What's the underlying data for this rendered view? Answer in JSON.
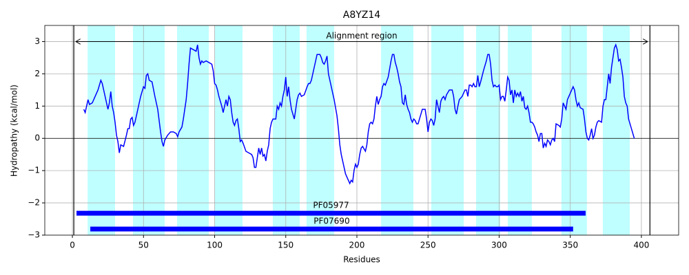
{
  "chart_data": {
    "type": "line",
    "title": "A8YZ14",
    "xlabel": "Residues",
    "ylabel": "Hydropathy (kcal/mol)",
    "color": "#0000ff",
    "xlim": [
      -19.4,
      426.2
    ],
    "ylim": [
      -3,
      3.5
    ],
    "xticks": [
      0,
      50,
      100,
      150,
      200,
      250,
      300,
      350,
      400
    ],
    "yticks": [
      {
        "value": -3,
        "label": "−3"
      },
      {
        "value": -2,
        "label": "−2"
      },
      {
        "value": -1,
        "label": "−1"
      },
      0,
      1,
      2,
      3
    ],
    "grid": true,
    "region_color": "#bfffff",
    "regions": [
      [
        10.7,
        30.0
      ],
      [
        42.6,
        64.9
      ],
      [
        73.6,
        95.9
      ],
      [
        100.2,
        119.6
      ],
      [
        140.9,
        159.8
      ],
      [
        164.6,
        184.0
      ],
      [
        217.0,
        239.7
      ],
      [
        252.3,
        275.1
      ],
      [
        283.8,
        300.7
      ],
      [
        306.1,
        323.0
      ],
      [
        343.8,
        361.7
      ],
      [
        372.9,
        391.8
      ]
    ],
    "vlines": [
      1,
      406
    ],
    "annotation": {
      "text": "Alignment region",
      "start": 2.4,
      "end": 404.4,
      "y": 3
    },
    "domains": [
      {
        "name": "PF05977",
        "start": 2.9,
        "end": 360.8,
        "y": -2.32,
        "color": "#0000ff"
      },
      {
        "name": "PF07690",
        "start": 12.6,
        "end": 352.0,
        "y": -2.81,
        "color": "#0000ff"
      }
    ],
    "x": [
      8,
      9,
      10,
      11,
      12,
      14,
      16,
      18,
      20,
      21,
      23,
      25,
      26,
      27,
      28,
      29,
      30,
      31,
      32,
      33,
      34,
      36,
      38,
      39,
      40,
      41,
      42,
      43,
      44,
      46,
      48,
      50,
      51,
      52,
      53,
      54,
      56,
      58,
      60,
      62,
      63,
      64,
      65,
      67,
      69,
      71,
      73,
      74,
      75,
      77,
      78,
      79,
      80,
      81,
      82,
      83,
      85,
      87,
      88,
      89,
      90,
      91,
      92,
      94,
      96,
      98,
      99,
      100,
      101,
      102,
      103,
      105,
      106,
      108,
      109,
      110,
      111,
      112,
      113,
      114,
      115,
      116,
      117,
      118,
      119,
      120,
      122,
      124,
      126,
      127,
      128,
      129,
      130,
      131,
      132,
      133,
      134,
      135,
      136,
      137,
      138,
      139,
      140,
      141,
      143,
      144,
      145,
      146,
      147,
      148,
      149,
      150,
      151,
      152,
      153,
      154,
      156,
      157,
      158,
      159,
      160,
      161,
      163,
      165,
      166,
      167,
      168,
      170,
      171,
      172,
      174,
      175,
      176,
      177,
      178,
      179,
      180,
      182,
      184,
      186,
      187,
      188,
      189,
      190,
      191,
      192,
      193,
      194,
      195,
      196,
      197,
      198,
      199,
      200,
      201,
      202,
      203,
      204,
      206,
      207,
      208,
      209,
      210,
      211,
      212,
      213,
      214,
      215,
      216,
      217,
      218,
      219,
      220,
      222,
      224,
      225,
      226,
      227,
      228,
      229,
      230,
      231,
      232,
      233,
      234,
      235,
      236,
      237,
      238,
      239,
      240,
      241,
      242,
      243,
      244,
      246,
      248,
      249,
      250,
      251,
      252,
      253,
      254,
      255,
      256,
      257,
      258,
      259,
      260,
      261,
      262,
      263,
      265,
      266,
      267,
      268,
      269,
      270,
      271,
      272,
      274,
      276,
      277,
      278,
      279,
      280,
      281,
      282,
      283,
      284,
      285,
      286,
      287,
      289,
      291,
      292,
      293,
      294,
      295,
      296,
      297,
      298,
      299,
      300,
      301,
      302,
      303,
      304,
      305,
      306,
      307,
      308,
      309,
      310,
      311,
      312,
      313,
      314,
      315,
      316,
      317,
      318,
      319,
      320,
      321,
      322,
      323,
      324,
      325,
      326,
      327,
      328,
      329,
      330,
      331,
      332,
      333,
      334,
      335,
      336,
      337,
      338,
      339,
      340,
      342,
      343,
      344,
      345,
      346,
      347,
      348,
      350,
      352,
      353,
      354,
      355,
      356,
      357,
      359,
      360,
      361,
      362,
      363,
      364,
      365,
      366,
      367,
      368,
      369,
      370,
      372,
      373,
      374,
      375,
      376,
      377,
      378,
      379,
      380,
      381,
      382,
      383,
      384,
      385,
      386,
      387,
      388,
      389,
      390,
      391,
      393,
      395
    ],
    "values": [
      0.9,
      0.8,
      1.0,
      1.2,
      1.05,
      1.1,
      1.3,
      1.5,
      1.8,
      1.7,
      1.3,
      0.9,
      1.1,
      1.45,
      1.0,
      0.8,
      0.5,
      0.1,
      -0.1,
      -0.45,
      -0.2,
      -0.25,
      0.1,
      0.3,
      0.3,
      0.6,
      0.65,
      0.4,
      0.5,
      0.9,
      1.3,
      1.6,
      1.55,
      1.95,
      2.0,
      1.8,
      1.75,
      1.3,
      0.9,
      0.2,
      -0.1,
      -0.25,
      -0.05,
      0.1,
      0.2,
      0.2,
      0.15,
      0.05,
      0.2,
      0.35,
      0.6,
      0.9,
      1.2,
      1.7,
      2.3,
      2.8,
      2.75,
      2.7,
      2.9,
      2.5,
      2.3,
      2.4,
      2.35,
      2.4,
      2.35,
      2.3,
      2.1,
      1.7,
      1.65,
      1.5,
      1.3,
      1.0,
      0.8,
      1.2,
      1.0,
      1.3,
      1.2,
      0.8,
      0.5,
      0.4,
      0.55,
      0.6,
      0.3,
      -0.1,
      -0.05,
      -0.15,
      -0.4,
      -0.45,
      -0.5,
      -0.6,
      -0.9,
      -0.9,
      -0.6,
      -0.3,
      -0.5,
      -0.3,
      -0.55,
      -0.5,
      -0.7,
      -0.4,
      -0.2,
      0.3,
      0.5,
      0.6,
      0.6,
      1.0,
      0.9,
      1.1,
      1.0,
      1.3,
      1.5,
      1.9,
      1.3,
      1.6,
      1.2,
      0.9,
      0.6,
      0.9,
      1.2,
      1.35,
      1.4,
      1.3,
      1.35,
      1.6,
      1.7,
      1.7,
      1.8,
      2.2,
      2.4,
      2.6,
      2.6,
      2.5,
      2.35,
      2.3,
      2.4,
      2.55,
      2.0,
      1.6,
      1.2,
      0.7,
      0.3,
      -0.2,
      -0.5,
      -0.7,
      -0.9,
      -1.1,
      -1.2,
      -1.3,
      -1.4,
      -1.3,
      -1.35,
      -1.0,
      -0.8,
      -0.9,
      -0.8,
      -0.5,
      -0.3,
      -0.25,
      -0.4,
      -0.2,
      0.2,
      0.45,
      0.5,
      0.45,
      0.6,
      1.0,
      1.3,
      1.05,
      1.2,
      1.3,
      1.6,
      1.7,
      1.65,
      1.9,
      2.4,
      2.6,
      2.6,
      2.35,
      2.2,
      2.0,
      1.75,
      1.6,
      1.1,
      1.05,
      1.35,
      1.05,
      0.9,
      0.8,
      0.6,
      0.5,
      0.6,
      0.55,
      0.45,
      0.45,
      0.6,
      0.9,
      0.9,
      0.6,
      0.2,
      0.5,
      0.6,
      0.55,
      0.4,
      0.6,
      1.2,
      1.0,
      0.8,
      1.15,
      1.25,
      1.3,
      1.2,
      1.35,
      1.5,
      1.5,
      1.5,
      1.3,
      0.9,
      0.75,
      1.0,
      1.2,
      1.3,
      1.5,
      1.5,
      1.3,
      1.65,
      1.65,
      1.6,
      1.7,
      1.6,
      1.6,
      1.95,
      1.6,
      1.75,
      2.1,
      2.4,
      2.6,
      2.6,
      2.3,
      1.8,
      1.6,
      1.65,
      1.6,
      1.6,
      1.65,
      1.2,
      1.3,
      1.3,
      1.15,
      1.5,
      1.9,
      1.8,
      1.35,
      1.5,
      1.1,
      1.5,
      1.3,
      1.4,
      1.3,
      1.45,
      1.15,
      1.3,
      0.95,
      0.9,
      1.0,
      0.8,
      0.5,
      0.5,
      0.45,
      0.35,
      0.2,
      0.1,
      -0.1,
      0.15,
      0.15,
      -0.3,
      -0.15,
      -0.25,
      -0.05,
      -0.1,
      -0.2,
      -0.05,
      0,
      -0.1,
      0.45,
      0.4,
      0.35,
      0.6,
      1.1,
      1.0,
      0.9,
      1.2,
      1.4,
      1.6,
      1.5,
      1.2,
      1.0,
      1.1,
      0.95,
      0.9,
      0.6,
      0.2,
      0.0,
      -0.05,
      0.1,
      0.3,
      0,
      0.1,
      0.35,
      0.5,
      0.55,
      0.5,
      1.0,
      1.2,
      1.2,
      1.6,
      2.0,
      1.7,
      2.2,
      2.5,
      2.8,
      2.9,
      2.75,
      2.4,
      2.45,
      2.2,
      1.9,
      1.3,
      1.1,
      1.0,
      0.6,
      0.3,
      0
    ]
  }
}
